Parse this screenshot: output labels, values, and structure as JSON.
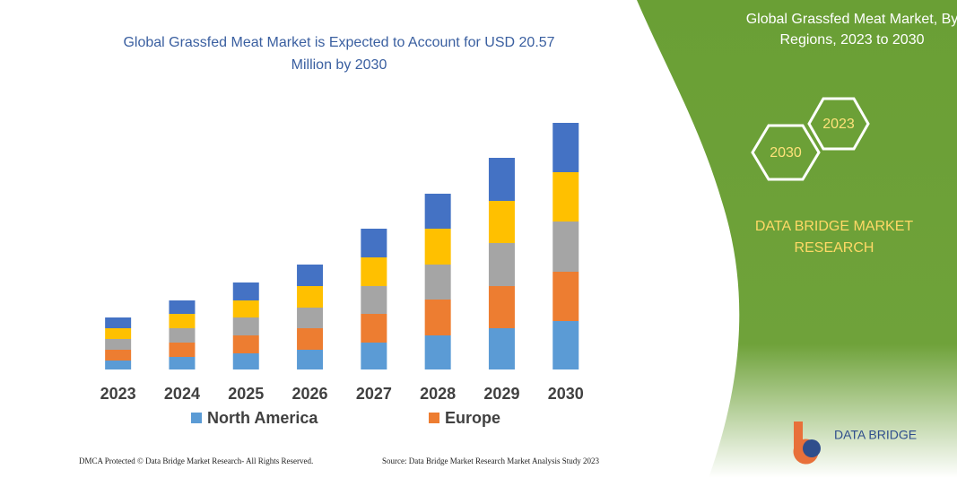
{
  "chart_data": {
    "type": "stacked-bar",
    "title": "Global Grassfed Meat Market is Expected to Account for USD 20.57 Million by 2030",
    "categories": [
      "2023",
      "2024",
      "2025",
      "2026",
      "2027",
      "2028",
      "2029",
      "2030"
    ],
    "series": [
      {
        "name": "North America",
        "color": "#5b9bd5",
        "values": [
          10,
          14,
          18,
          22,
          30,
          38,
          46,
          54
        ]
      },
      {
        "name": "Europe",
        "color": "#ed7d31",
        "values": [
          12,
          16,
          20,
          24,
          32,
          40,
          47,
          55
        ]
      },
      {
        "color": "#a5a5a5",
        "values": [
          12,
          16,
          20,
          23,
          31,
          39,
          48,
          56
        ]
      },
      {
        "color": "#ffc000",
        "values": [
          12,
          16,
          19,
          24,
          32,
          40,
          47,
          55
        ]
      },
      {
        "color": "#4472c4",
        "values": [
          12,
          15,
          20,
          24,
          32,
          39,
          48,
          55
        ]
      }
    ]
  },
  "panel": {
    "title": "Global Grassfed Meat Market, By Regions, 2023 to 2030",
    "hexagons": [
      "2030",
      "2023"
    ],
    "brand": "DATA BRIDGE MARKET RESEARCH"
  },
  "logo": "DATA BRIDGE",
  "footer": {
    "left": "DMCA Protected © Data Bridge Market Research- All Rights Reserved.",
    "right": "Source: Data Bridge Market Research Market Analysis Study 2023"
  }
}
